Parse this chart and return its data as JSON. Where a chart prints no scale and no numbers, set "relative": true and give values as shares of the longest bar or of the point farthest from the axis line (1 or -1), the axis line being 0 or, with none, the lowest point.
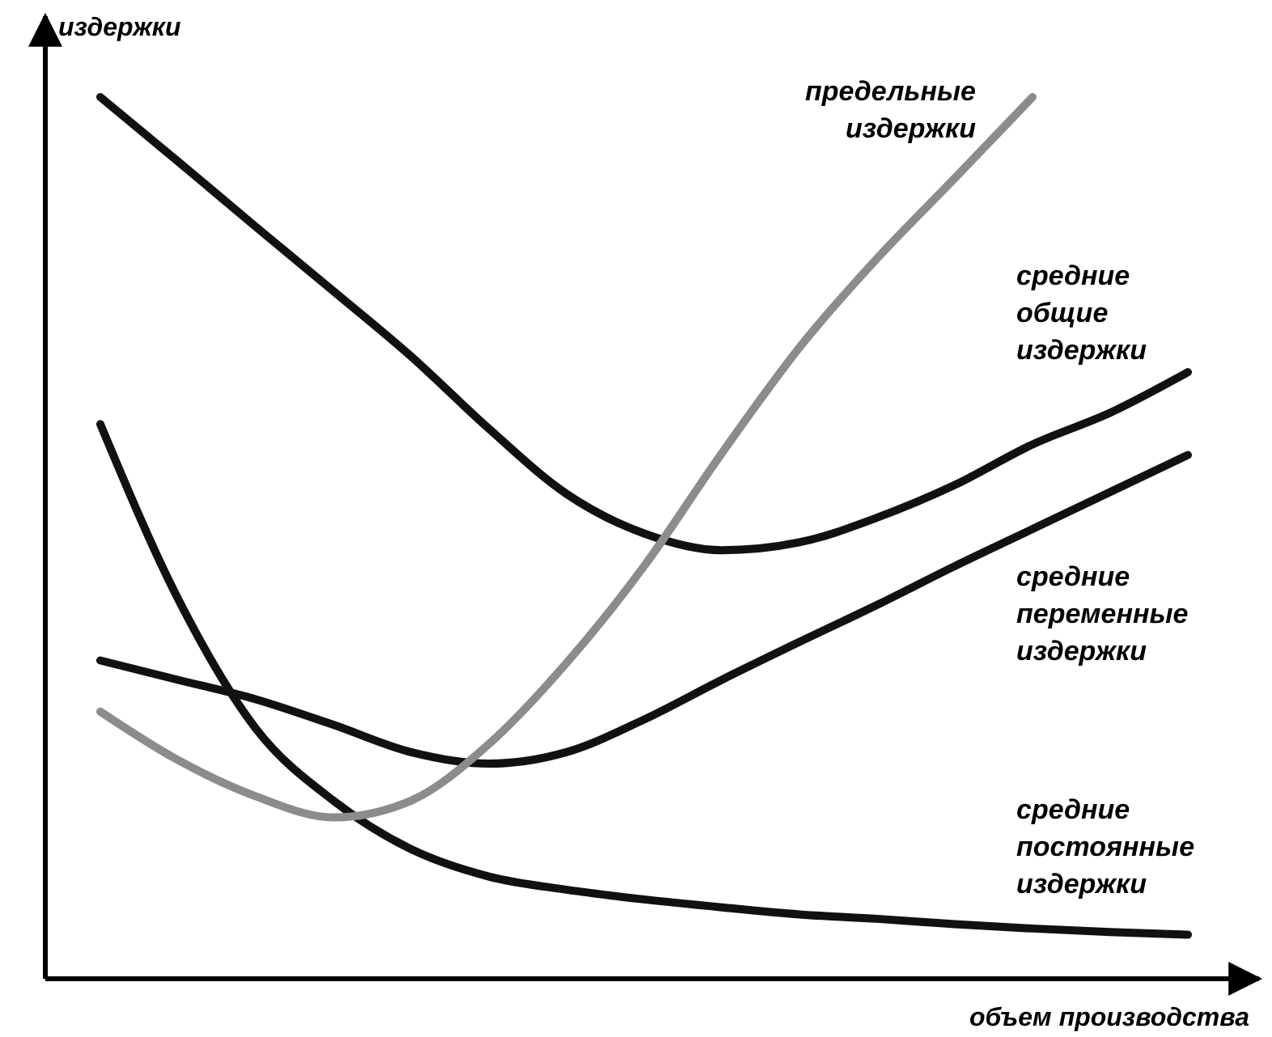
{
  "chart_data": {
    "type": "line",
    "relative": true,
    "xlabel": "объем производства",
    "ylabel": "издержки",
    "categories": [
      null,
      null,
      null,
      null,
      null,
      null,
      null,
      null,
      null,
      null,
      null,
      null,
      null,
      null,
      null
    ],
    "grid": false,
    "legend": false,
    "marker": "none",
    "line_style": "solid",
    "series": [
      {
        "name": "средние общие издержки",
        "color": "#111111",
        "values": [
          1.0,
          0.927,
          0.853,
          0.78,
          0.706,
          0.624,
          0.55,
          0.505,
          0.486,
          0.495,
          0.523,
          0.56,
          0.606,
          0.642,
          0.688
        ]
      },
      {
        "name": "средние переменные издержки",
        "color": "#111111",
        "values": [
          0.361,
          0.339,
          0.317,
          0.288,
          0.257,
          0.244,
          0.257,
          0.294,
          0.339,
          0.382,
          0.424,
          0.468,
          0.51,
          0.552,
          0.594
        ]
      },
      {
        "name": "средние постоянные издержки",
        "color": "#111111",
        "values": [
          0.629,
          0.431,
          0.284,
          0.202,
          0.147,
          0.116,
          0.101,
          0.09,
          0.081,
          0.073,
          0.068,
          0.062,
          0.057,
          0.053,
          0.05
        ]
      },
      {
        "name": "предельные издержки",
        "color": "#8c8c8c",
        "values": [
          0.303,
          0.248,
          0.207,
          0.183,
          0.202,
          0.266,
          0.358,
          0.468,
          0.596,
          0.716,
          0.817,
          0.908,
          1.0,
          null,
          null
        ]
      }
    ]
  }
}
